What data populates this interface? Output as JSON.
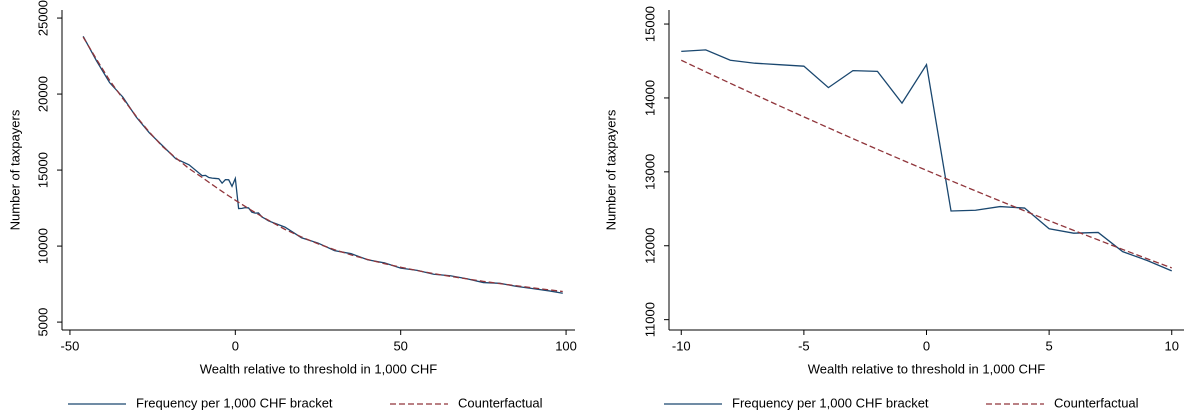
{
  "chart_data": [
    {
      "type": "line",
      "x_label": "Wealth relative to threshold in 1,000 CHF",
      "y_label": "Number of taxpayers",
      "x": [
        -46,
        -42,
        -38,
        -34,
        -30,
        -26,
        -22,
        -18,
        -14,
        -10,
        -9,
        -8,
        -7,
        -6,
        -5,
        -4,
        -3,
        -2,
        -1,
        0,
        1,
        2,
        3,
        4,
        5,
        6,
        7,
        8,
        9,
        10,
        15,
        20,
        25,
        30,
        35,
        40,
        45,
        50,
        55,
        60,
        65,
        70,
        75,
        80,
        85,
        90,
        95,
        99
      ],
      "series": [
        {
          "name": "Frequency per 1,000 CHF bracket",
          "color": "#1a476f",
          "dash": false,
          "values": [
            23800,
            22200,
            20750,
            19800,
            18500,
            17450,
            16600,
            15750,
            15350,
            14630,
            14650,
            14510,
            14470,
            14450,
            14430,
            14140,
            14370,
            14360,
            13930,
            14450,
            12470,
            12480,
            12530,
            12510,
            12230,
            12170,
            12180,
            11920,
            11800,
            11660,
            11250,
            10550,
            10200,
            9700,
            9500,
            9100,
            8900,
            8550,
            8400,
            8150,
            8050,
            7850,
            7600,
            7550,
            7350,
            7200,
            7050,
            6900
          ]
        },
        {
          "name": "Counterfactual",
          "color": "#90353b",
          "dash": true,
          "values": [
            23750,
            22300,
            20900,
            19700,
            18550,
            17500,
            16550,
            15800,
            15100,
            14510,
            14353,
            14198,
            14045,
            13894,
            13744,
            13596,
            13449,
            13304,
            13161,
            13020,
            12880,
            12742,
            12606,
            12472,
            12339,
            12208,
            12079,
            11950,
            11824,
            11700,
            11100,
            10600,
            10150,
            9760,
            9420,
            9120,
            8850,
            8610,
            8390,
            8190,
            8010,
            7840,
            7680,
            7530,
            7390,
            7250,
            7120,
            7010
          ]
        }
      ],
      "xlim": [
        -52.4,
        102.7
      ],
      "xticks": [
        -50,
        0,
        50,
        100
      ],
      "ylim": [
        4480,
        25530
      ],
      "yticks": [
        5000,
        10000,
        15000,
        20000,
        25000
      ],
      "grid": false
    },
    {
      "type": "line",
      "x_label": "Wealth relative to threshold in 1,000 CHF",
      "y_label": "Number of taxpayers",
      "x": [
        -10,
        -9,
        -8,
        -7,
        -6,
        -5,
        -4,
        -3,
        -2,
        -1,
        0,
        1,
        2,
        3,
        4,
        5,
        6,
        7,
        8,
        9,
        10
      ],
      "series": [
        {
          "name": "Frequency per 1,000 CHF bracket",
          "color": "#1a476f",
          "dash": false,
          "values": [
            14630,
            14650,
            14510,
            14470,
            14450,
            14430,
            14140,
            14370,
            14360,
            13930,
            14450,
            12470,
            12480,
            12530,
            12510,
            12230,
            12170,
            12180,
            11920,
            11800,
            11660
          ]
        },
        {
          "name": "Counterfactual",
          "color": "#90353b",
          "dash": true,
          "values": [
            14510,
            14353,
            14198,
            14045,
            13894,
            13744,
            13596,
            13449,
            13304,
            13161,
            13020,
            12880,
            12742,
            12606,
            12472,
            12339,
            12208,
            12079,
            11950,
            11824,
            11700
          ]
        }
      ],
      "xlim": [
        -10.5,
        10.5
      ],
      "xticks": [
        -10,
        -5,
        0,
        5,
        10
      ],
      "ylim": [
        10860,
        15190
      ],
      "yticks": [
        11000,
        12000,
        13000,
        14000,
        15000
      ],
      "grid": false
    }
  ]
}
